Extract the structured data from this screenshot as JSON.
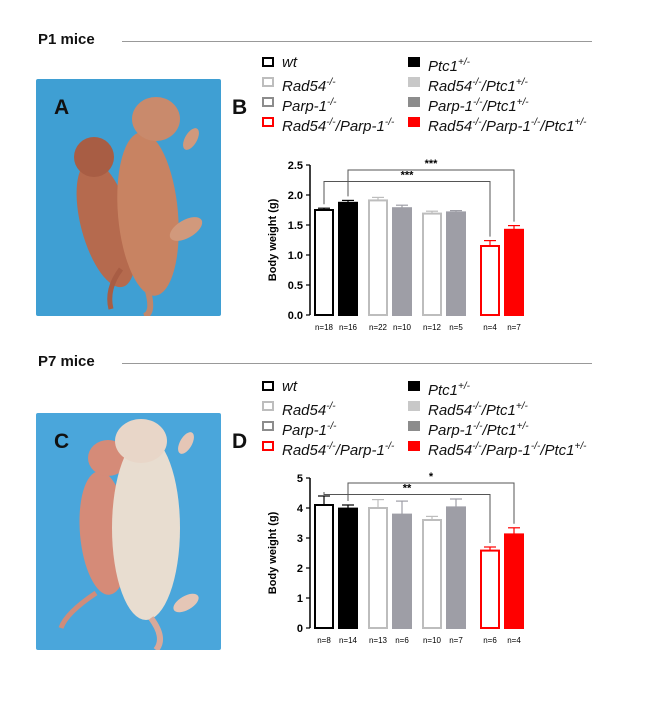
{
  "sections": [
    {
      "title": "P1 mice",
      "panel_photo": "A",
      "panel_chart": "B"
    },
    {
      "title": "P7 mice",
      "panel_photo": "C",
      "panel_chart": "D"
    }
  ],
  "photos": [
    {
      "description": "two-p1-mouse-pups-photo",
      "background": "#3f9fd3"
    },
    {
      "description": "two-p7-mouse-pups-photo",
      "background": "#4aa6db"
    }
  ],
  "legend": [
    {
      "label": "wt",
      "sup": "",
      "color": "#000000",
      "filled": false
    },
    {
      "label": "Ptc1",
      "sup": "+/-",
      "color": "#000000",
      "filled": true
    },
    {
      "label": "Rad54",
      "sup": "-/-",
      "color": "#bdbdbd",
      "filled": false
    },
    {
      "label": "Rad54",
      "sup": "-/-",
      "label2": "/Ptc1",
      "sup2": "+/-",
      "color": "#c8c8c8",
      "filled": true
    },
    {
      "label": "Parp-1",
      "sup": "-/-",
      "color": "#8c8c8c",
      "filled": false
    },
    {
      "label": "Parp-1",
      "sup": "-/-",
      "label2": "/Ptc1",
      "sup2": "+/-",
      "color": "#8c8c8c",
      "filled": true
    },
    {
      "label": "Rad54",
      "sup": "-/-",
      "label2": "/Parp-1",
      "sup2": "-/-",
      "color": "#ff0000",
      "filled": false
    },
    {
      "label": "Rad54",
      "sup": "-/-",
      "label2": "/Parp-1",
      "sup2": "-/-",
      "label3": "/Ptc1",
      "sup3": "+/-",
      "color": "#ff0000",
      "filled": true
    }
  ],
  "chart_data": [
    {
      "type": "bar",
      "panel": "B",
      "ylabel": "Body weight (g)",
      "ylim": [
        0,
        2.5
      ],
      "yticks": [
        "0.0",
        "0.5",
        "1.0",
        "1.5",
        "2.0",
        "2.5"
      ],
      "categories": [
        "n=18",
        "n=16",
        "n=22",
        "n=10",
        "n=12",
        "n=5",
        "n=4",
        "n=7"
      ],
      "values": [
        1.75,
        1.87,
        1.91,
        1.78,
        1.69,
        1.71,
        1.15,
        1.42
      ],
      "errors": [
        0.03,
        0.04,
        0.05,
        0.05,
        0.04,
        0.03,
        0.09,
        0.07
      ],
      "group_index": [
        0,
        0,
        1,
        1,
        2,
        2,
        3,
        3
      ],
      "colors": [
        "#000000",
        "#000000",
        "#bdbdbd",
        "#9e9ea6",
        "#bdbdbd",
        "#9e9ea6",
        "#ff0000",
        "#ff0000"
      ],
      "filled": [
        false,
        true,
        false,
        true,
        false,
        true,
        false,
        true
      ],
      "significance": [
        {
          "from": 0,
          "to": 6,
          "label": "***",
          "level": 1
        },
        {
          "from": 1,
          "to": 7,
          "label": "***",
          "level": 2
        }
      ]
    },
    {
      "type": "bar",
      "panel": "D",
      "ylabel": "Body weight (g)",
      "ylim": [
        0,
        5
      ],
      "yticks": [
        "0",
        "1",
        "2",
        "3",
        "4",
        "5"
      ],
      "categories": [
        "n=8",
        "n=14",
        "n=13",
        "n=6",
        "n=10",
        "n=7",
        "n=6",
        "n=4"
      ],
      "values": [
        4.1,
        3.98,
        4.0,
        3.78,
        3.6,
        4.02,
        2.58,
        3.12
      ],
      "errors": [
        0.3,
        0.12,
        0.28,
        0.45,
        0.12,
        0.28,
        0.12,
        0.22
      ],
      "group_index": [
        0,
        0,
        1,
        1,
        2,
        2,
        3,
        3
      ],
      "colors": [
        "#000000",
        "#000000",
        "#bdbdbd",
        "#9e9ea6",
        "#bdbdbd",
        "#9e9ea6",
        "#ff0000",
        "#ff0000"
      ],
      "filled": [
        false,
        true,
        false,
        true,
        false,
        true,
        false,
        true
      ],
      "significance": [
        {
          "from": 0,
          "to": 6,
          "label": "**",
          "level": 1
        },
        {
          "from": 1,
          "to": 7,
          "label": "*",
          "level": 2
        }
      ]
    }
  ]
}
